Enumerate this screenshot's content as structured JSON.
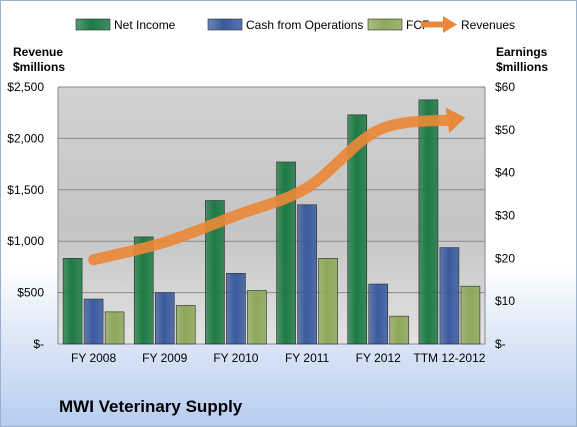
{
  "chart_data": {
    "type": "bar",
    "categories": [
      "FY 2008",
      "FY 2009",
      "FY 2010",
      "FY 2011",
      "FY 2012",
      "TTM 12-2012"
    ],
    "series": [
      {
        "name": "Net Income",
        "axis": "right",
        "color": "#1e7a45",
        "values": [
          20,
          25,
          33.5,
          42.5,
          53.5,
          57
        ]
      },
      {
        "name": "Cash from Operations",
        "axis": "right",
        "color": "#3a5b9e",
        "values": [
          10.5,
          12,
          16.5,
          32.5,
          14,
          22.5
        ]
      },
      {
        "name": "FCF",
        "axis": "right",
        "color": "#8ea85a",
        "values": [
          7.5,
          9,
          12.5,
          20,
          6.5,
          13.5
        ]
      }
    ],
    "line_series": [
      {
        "name": "Revenues",
        "axis": "left",
        "color": "#e98838",
        "values": [
          820,
          990,
          1250,
          1520,
          2080,
          2180
        ]
      }
    ],
    "left_axis": {
      "label_line1": "Revenue",
      "label_line2": "$millions",
      "ylim": [
        0,
        2500
      ],
      "ticks": [
        0,
        500,
        1000,
        1500,
        2000,
        2500
      ],
      "tick_labels": [
        "$-",
        "$500",
        "$1,000",
        "$1,500",
        "$2,000",
        "$2,500"
      ]
    },
    "right_axis": {
      "label_line1": "Earnings",
      "label_line2": "$millions",
      "ylim": [
        0,
        60
      ],
      "ticks": [
        0,
        10,
        20,
        30,
        40,
        50,
        60
      ],
      "tick_labels": [
        "$-",
        "$10",
        "$20",
        "$30",
        "$40",
        "$50",
        "$60"
      ]
    },
    "legend_position": "top",
    "grid": true
  },
  "footer": {
    "company": "MWI Veterinary Supply"
  }
}
